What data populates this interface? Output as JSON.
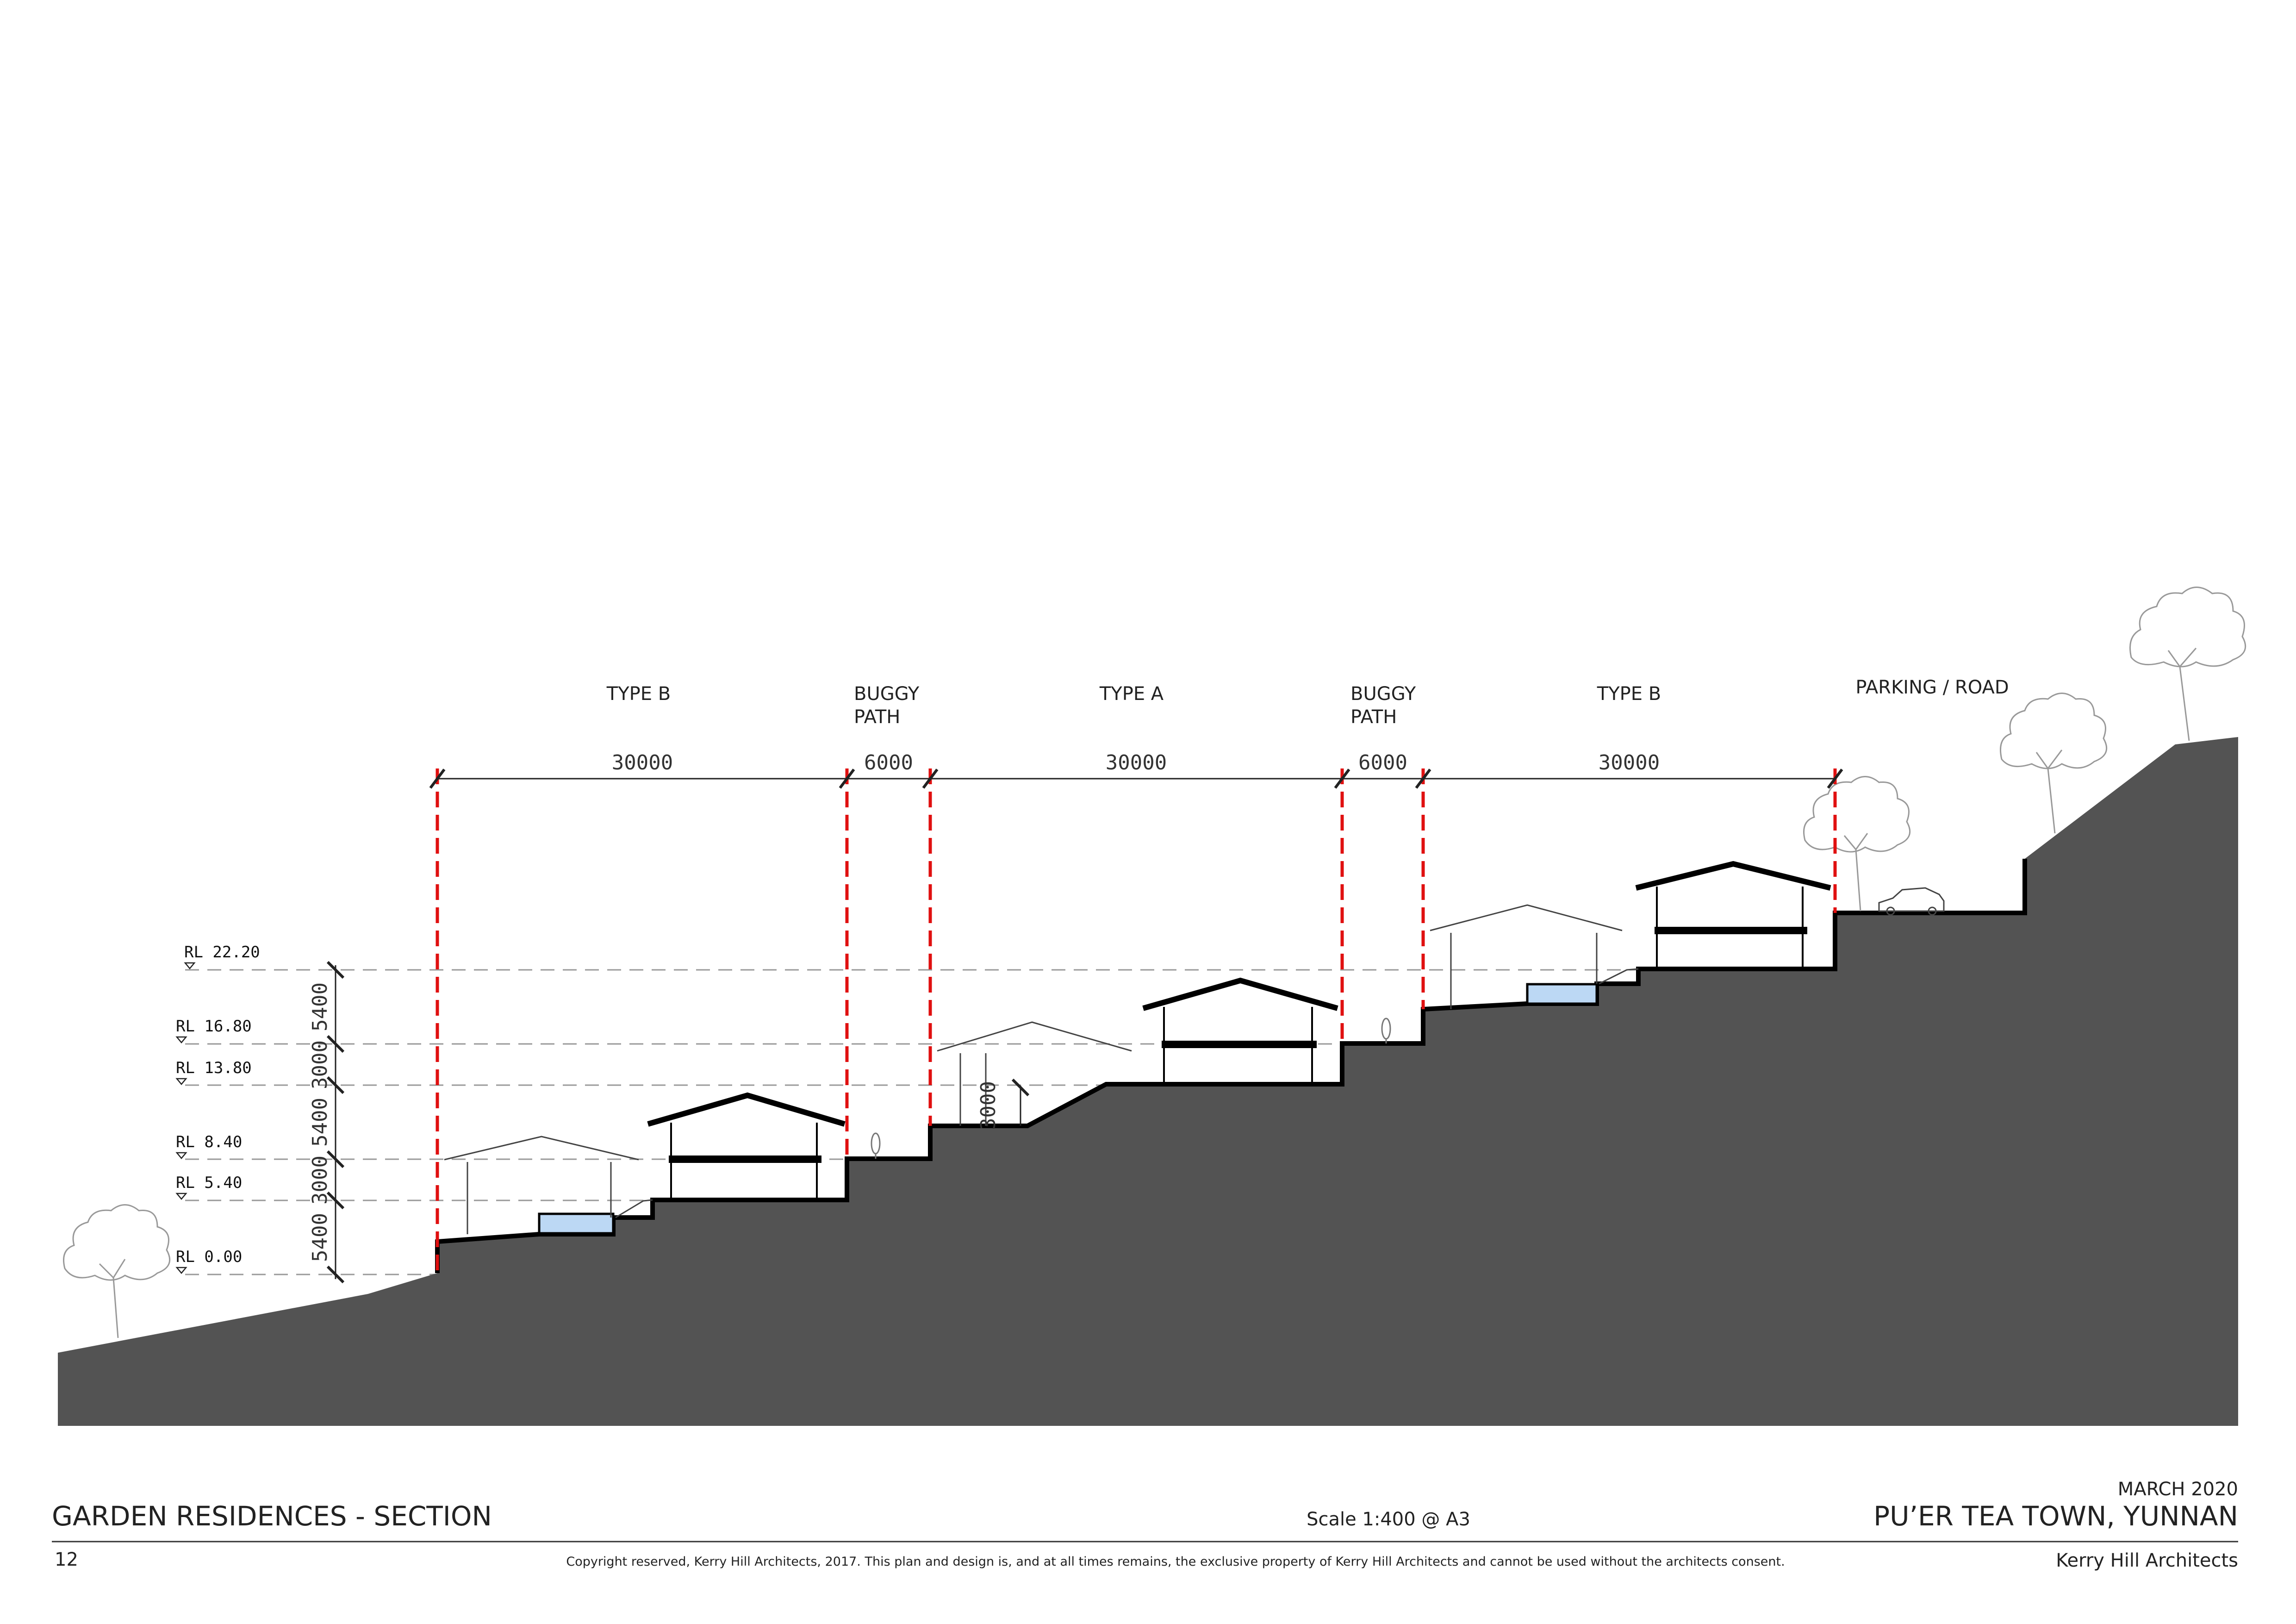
{
  "zones": [
    {
      "label_lines": [
        "TYPE B"
      ],
      "dimension": "30000"
    },
    {
      "label_lines": [
        "BUGGY",
        "PATH"
      ],
      "dimension": "6000"
    },
    {
      "label_lines": [
        "TYPE A"
      ],
      "dimension": "30000"
    },
    {
      "label_lines": [
        "BUGGY",
        "PATH"
      ],
      "dimension": "6000"
    },
    {
      "label_lines": [
        "TYPE B"
      ],
      "dimension": "30000"
    }
  ],
  "parking_label": "PARKING  /  ROAD",
  "levels": [
    {
      "label": "RL 22.20"
    },
    {
      "label": "RL 16.80"
    },
    {
      "label": "RL 13.80"
    },
    {
      "label": "RL 8.40"
    },
    {
      "label": "RL 5.40"
    },
    {
      "label": "RL 0.00"
    }
  ],
  "level_dims": [
    "5400",
    "3000",
    "5400",
    "3000",
    "5400"
  ],
  "step_dim": "3000",
  "footer": {
    "title": "GARDEN RESIDENCES - SECTION",
    "scale": "Scale 1:400 @ A3",
    "date": "MARCH 2020",
    "project": "PU’ER TEA TOWN, YUNNAN",
    "page": "12",
    "copyright": "Copyright reserved, Kerry Hill Architects, 2017. This plan and design is, and at all times remains, the exclusive property of Kerry Hill Architects and cannot be used without the architects consent.",
    "firm": "Kerry Hill Architects"
  },
  "colors": {
    "ground": "#535353",
    "boundary": "#e01010",
    "pool": "#bcd8f4"
  }
}
